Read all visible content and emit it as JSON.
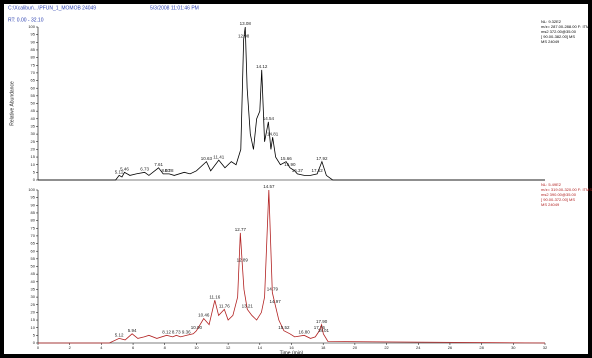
{
  "header": {
    "file": "C:\\Xcalibur\\...\\PFUN_1_MOMOB 24049",
    "date": "5/3/2008 11:01:46 PM",
    "range": "RT: 0.00 - 32.10"
  },
  "chart_data": [
    {
      "type": "line",
      "y_label": "Relative Abundance",
      "color": "#000000",
      "info": [
        "NL: 9.32E2",
        "m/z= 287.00-288.00 F: ITMS + c ESI Full",
        "ms2 372.00@35.00",
        "[ 90.00-382.00] MS",
        "MS 24049"
      ],
      "x": [
        0,
        4.9,
        5.12,
        5.3,
        5.46,
        5.8,
        6.2,
        6.73,
        7.0,
        7.61,
        7.9,
        8.07,
        8.28,
        8.6,
        9.23,
        9.6,
        10.0,
        10.63,
        10.9,
        11.41,
        11.8,
        12.2,
        12.5,
        12.8,
        12.98,
        13.08,
        13.2,
        13.4,
        13.6,
        13.8,
        14.0,
        14.12,
        14.3,
        14.54,
        14.7,
        14.81,
        15.0,
        15.3,
        15.66,
        15.9,
        16.2,
        16.37,
        16.8,
        17.2,
        17.62,
        17.92,
        18.2,
        18.6,
        32
      ],
      "values": [
        0,
        0,
        3,
        2,
        5,
        3,
        4,
        5,
        3,
        8,
        4,
        4,
        4,
        3,
        5,
        4,
        6,
        12,
        6,
        13,
        8,
        12,
        10,
        20,
        92,
        100,
        60,
        30,
        20,
        40,
        45,
        72,
        25,
        38,
        20,
        28,
        15,
        10,
        12,
        8,
        6,
        4,
        3,
        3,
        4,
        12,
        3,
        0,
        0
      ],
      "xlim": [
        0,
        32
      ],
      "ylim": [
        0,
        100
      ],
      "yticks": [
        0,
        5,
        10,
        15,
        20,
        25,
        30,
        35,
        40,
        45,
        50,
        55,
        60,
        65,
        70,
        75,
        80,
        85,
        90,
        95,
        100
      ],
      "annotations": [
        {
          "text": "5.12",
          "x": 5.12,
          "y": 3
        },
        {
          "text": "5.46",
          "x": 5.46,
          "y": 5
        },
        {
          "text": "6.73",
          "x": 6.73,
          "y": 5
        },
        {
          "text": "7.61",
          "x": 7.61,
          "y": 8
        },
        {
          "text": "8.07",
          "x": 8.07,
          "y": 4
        },
        {
          "text": "8.28",
          "x": 8.28,
          "y": 4
        },
        {
          "text": "10.63",
          "x": 10.63,
          "y": 12
        },
        {
          "text": "11.41",
          "x": 11.41,
          "y": 13
        },
        {
          "text": "12.98",
          "x": 12.98,
          "y": 92
        },
        {
          "text": "13.08",
          "x": 13.08,
          "y": 100
        },
        {
          "text": "14.12",
          "x": 14.12,
          "y": 72
        },
        {
          "text": "14.54",
          "x": 14.54,
          "y": 38
        },
        {
          "text": "14.81",
          "x": 14.81,
          "y": 28
        },
        {
          "text": "15.66",
          "x": 15.66,
          "y": 12
        },
        {
          "text": "15.90",
          "x": 15.9,
          "y": 8
        },
        {
          "text": "16.37",
          "x": 16.37,
          "y": 4
        },
        {
          "text": "17.62",
          "x": 17.62,
          "y": 4
        },
        {
          "text": "17.92",
          "x": 17.92,
          "y": 12
        }
      ]
    },
    {
      "type": "line",
      "x_label": "Time (min)",
      "color": "#b22222",
      "info": [
        "NL: 5.49E2",
        "m/z= 319.00-320.00 F: ITMS + c ESI Full",
        "ms2 390.00@35.00",
        "[ 90.00-372.00] MS",
        "MS 24049"
      ],
      "x": [
        0,
        4.5,
        5.12,
        5.5,
        5.94,
        6.3,
        6.7,
        7.0,
        7.5,
        8.12,
        8.5,
        8.73,
        9.0,
        9.36,
        9.8,
        10.0,
        10.46,
        10.8,
        11.16,
        11.4,
        11.76,
        12.0,
        12.3,
        12.6,
        12.77,
        12.89,
        13.0,
        13.21,
        13.5,
        13.8,
        14.1,
        14.3,
        14.57,
        14.79,
        14.97,
        15.2,
        15.52,
        15.9,
        16.2,
        16.8,
        17.2,
        17.5,
        17.76,
        17.9,
        18.01,
        18.3,
        32
      ],
      "values": [
        0,
        0,
        3,
        2,
        6,
        3,
        4,
        5,
        3,
        5,
        4,
        5,
        4,
        5,
        6,
        8,
        16,
        12,
        28,
        18,
        22,
        15,
        18,
        30,
        72,
        52,
        35,
        22,
        18,
        15,
        20,
        30,
        100,
        33,
        25,
        15,
        8,
        6,
        4,
        5,
        3,
        4,
        8,
        12,
        6,
        1,
        0
      ],
      "xlim": [
        0,
        32
      ],
      "ylim": [
        0,
        100
      ],
      "xticks": [
        0,
        2,
        4,
        6,
        8,
        10,
        12,
        14,
        16,
        18,
        20,
        22,
        24,
        26,
        28,
        30,
        32
      ],
      "yticks": [
        0,
        5,
        10,
        15,
        20,
        25,
        30,
        35,
        40,
        45,
        50,
        55,
        60,
        65,
        70,
        75,
        80,
        85,
        90,
        95,
        100
      ],
      "annotations": [
        {
          "text": "5.12",
          "x": 5.12,
          "y": 3
        },
        {
          "text": "5.94",
          "x": 5.94,
          "y": 6
        },
        {
          "text": "8.12",
          "x": 8.12,
          "y": 5
        },
        {
          "text": "8.73",
          "x": 8.73,
          "y": 5
        },
        {
          "text": "9.36",
          "x": 9.36,
          "y": 5
        },
        {
          "text": "10.00",
          "x": 10.0,
          "y": 8
        },
        {
          "text": "10.46",
          "x": 10.46,
          "y": 16
        },
        {
          "text": "11.16",
          "x": 11.16,
          "y": 28
        },
        {
          "text": "11.76",
          "x": 11.76,
          "y": 22
        },
        {
          "text": "12.77",
          "x": 12.77,
          "y": 72
        },
        {
          "text": "12.89",
          "x": 12.89,
          "y": 52
        },
        {
          "text": "13.21",
          "x": 13.21,
          "y": 22
        },
        {
          "text": "14.57",
          "x": 14.57,
          "y": 100
        },
        {
          "text": "14.79",
          "x": 14.79,
          "y": 33
        },
        {
          "text": "14.97",
          "x": 14.97,
          "y": 25
        },
        {
          "text": "15.52",
          "x": 15.52,
          "y": 8
        },
        {
          "text": "16.80",
          "x": 16.8,
          "y": 5
        },
        {
          "text": "17.76",
          "x": 17.76,
          "y": 8
        },
        {
          "text": "17.90",
          "x": 17.9,
          "y": 12
        },
        {
          "text": "18.01",
          "x": 18.01,
          "y": 6
        }
      ]
    }
  ]
}
